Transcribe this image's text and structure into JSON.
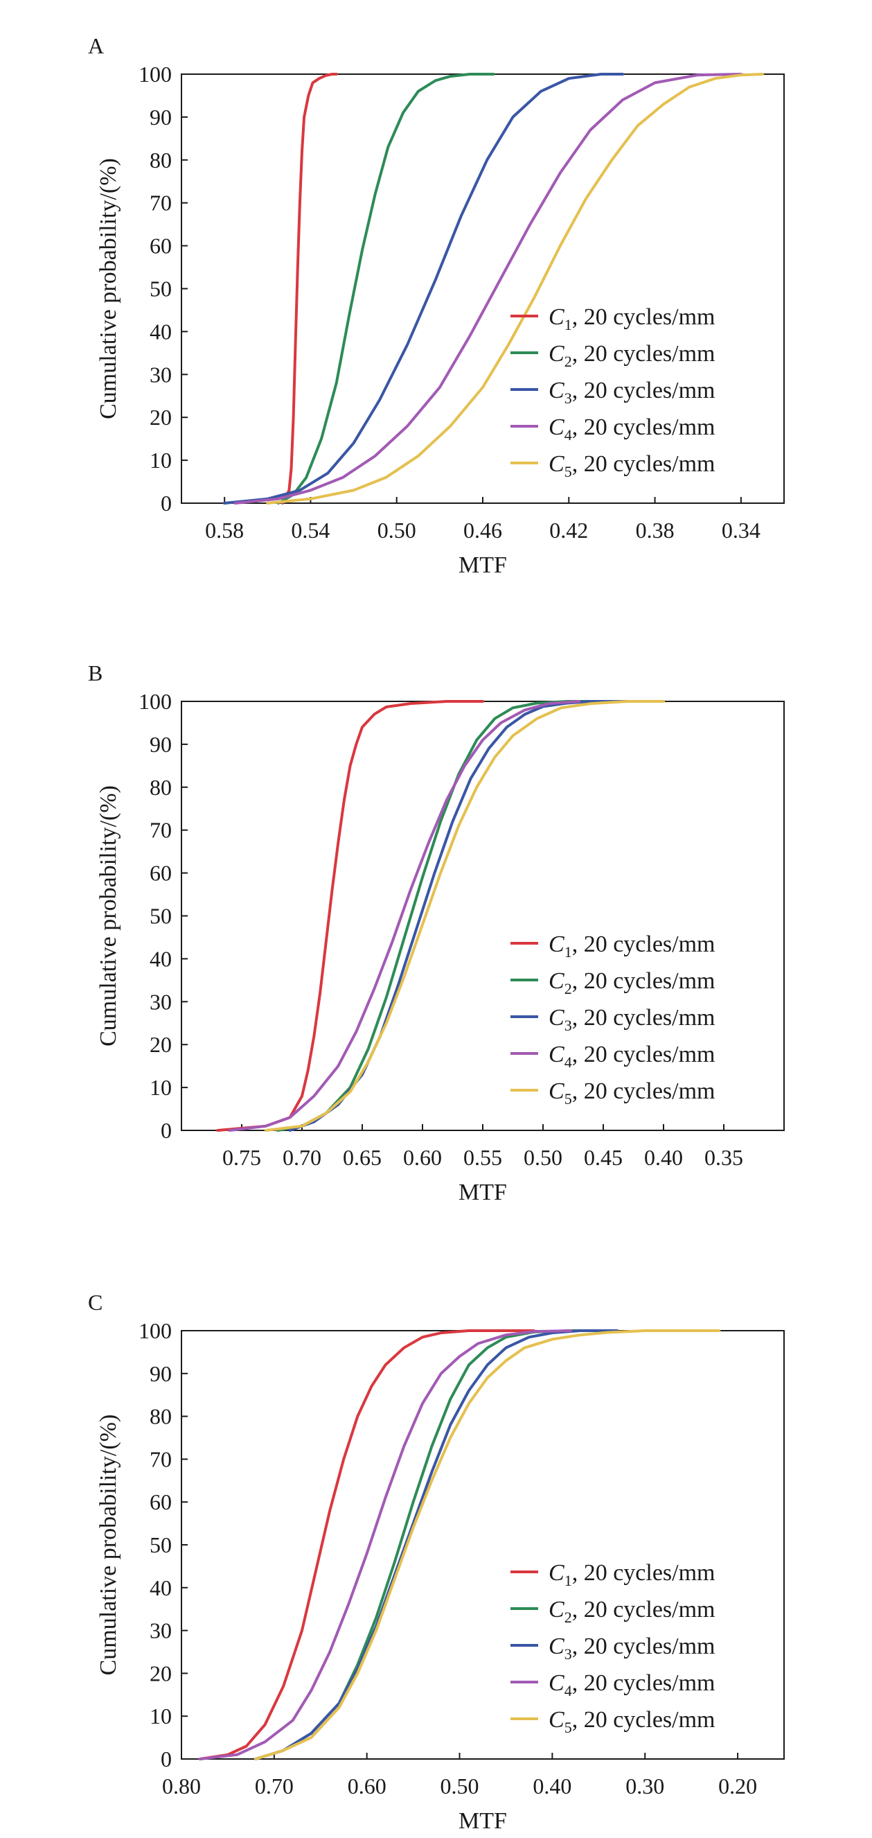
{
  "chart_data": [
    {
      "panel_label": "A",
      "type": "line",
      "xlabel": "MTF",
      "ylabel": "Cumulative probability/(%)",
      "x_reversed": true,
      "xlim": [
        0.6,
        0.32
      ],
      "ylim": [
        0,
        100
      ],
      "xticks": [
        "0.58",
        "0.54",
        "0.50",
        "0.46",
        "0.42",
        "0.38",
        "0.34"
      ],
      "yticks": [
        "0",
        "10",
        "20",
        "30",
        "40",
        "50",
        "60",
        "70",
        "80",
        "90",
        "100"
      ],
      "legend_position": "lower-right",
      "series": [
        {
          "legend_label": {
            "sym": "C",
            "sub": "1",
            "rest": ", 20 cycles/mm"
          },
          "color": "#d9383f",
          "x": [
            0.553,
            0.55,
            0.549,
            0.548,
            0.547,
            0.546,
            0.545,
            0.544,
            0.543,
            0.541,
            0.539,
            0.536,
            0.533,
            0.53,
            0.528
          ],
          "y": [
            0,
            3,
            8,
            20,
            38,
            55,
            70,
            82,
            90,
            95,
            98,
            99,
            99.7,
            100,
            100
          ]
        },
        {
          "legend_label": {
            "sym": "C",
            "sub": "2",
            "rest": ", 20 cycles/mm"
          },
          "color": "#2e8b57",
          "x": [
            0.555,
            0.548,
            0.542,
            0.535,
            0.528,
            0.522,
            0.516,
            0.51,
            0.504,
            0.497,
            0.49,
            0.482,
            0.475,
            0.466,
            0.455
          ],
          "y": [
            0,
            2,
            6,
            15,
            28,
            44,
            59,
            72,
            83,
            91,
            96,
            98.5,
            99.5,
            100,
            100
          ]
        },
        {
          "legend_label": {
            "sym": "C",
            "sub": "3",
            "rest": ", 20 cycles/mm"
          },
          "color": "#3a56a5",
          "x": [
            0.58,
            0.56,
            0.545,
            0.532,
            0.52,
            0.508,
            0.495,
            0.482,
            0.47,
            0.458,
            0.446,
            0.433,
            0.42,
            0.405,
            0.395
          ],
          "y": [
            0,
            1,
            3,
            7,
            14,
            24,
            37,
            52,
            67,
            80,
            90,
            96,
            99,
            100,
            100
          ]
        },
        {
          "legend_label": {
            "sym": "C",
            "sub": "4",
            "rest": ", 20 cycles/mm"
          },
          "color": "#a25ab4",
          "x": [
            0.575,
            0.555,
            0.54,
            0.525,
            0.51,
            0.495,
            0.48,
            0.466,
            0.452,
            0.438,
            0.424,
            0.41,
            0.395,
            0.38,
            0.36,
            0.34
          ],
          "y": [
            0,
            1,
            3,
            6,
            11,
            18,
            27,
            39,
            52,
            65,
            77,
            87,
            94,
            98,
            99.8,
            100
          ]
        },
        {
          "legend_label": {
            "sym": "C",
            "sub": "5",
            "rest": ", 20 cycles/mm"
          },
          "color": "#e5c04f",
          "x": [
            0.56,
            0.54,
            0.52,
            0.505,
            0.49,
            0.475,
            0.46,
            0.448,
            0.436,
            0.424,
            0.412,
            0.4,
            0.388,
            0.376,
            0.364,
            0.352,
            0.34,
            0.33
          ],
          "y": [
            0,
            1,
            3,
            6,
            11,
            18,
            27,
            37,
            48,
            60,
            71,
            80,
            88,
            93,
            97,
            99,
            99.8,
            100
          ]
        }
      ]
    },
    {
      "panel_label": "B",
      "type": "line",
      "xlabel": "MTF",
      "ylabel": "Cumulative probability/(%)",
      "x_reversed": true,
      "xlim": [
        0.8,
        0.3
      ],
      "ylim": [
        0,
        100
      ],
      "xticks": [
        "0.75",
        "0.70",
        "0.65",
        "0.60",
        "0.55",
        "0.50",
        "0.45",
        "0.40",
        "0.35"
      ],
      "yticks": [
        "0",
        "10",
        "20",
        "30",
        "40",
        "50",
        "60",
        "70",
        "80",
        "90",
        "100"
      ],
      "legend_position": "lower-right",
      "series": [
        {
          "legend_label": {
            "sym": "C",
            "sub": "1",
            "rest": ", 20 cycles/mm"
          },
          "color": "#d9383f",
          "x": [
            0.77,
            0.73,
            0.71,
            0.7,
            0.695,
            0.69,
            0.685,
            0.68,
            0.675,
            0.67,
            0.665,
            0.66,
            0.655,
            0.65,
            0.64,
            0.63,
            0.61,
            0.58,
            0.55
          ],
          "y": [
            0,
            1,
            3,
            8,
            14,
            22,
            32,
            44,
            56,
            67,
            77,
            85,
            90,
            94,
            97,
            98.7,
            99.5,
            100,
            100
          ]
        },
        {
          "legend_label": {
            "sym": "C",
            "sub": "2",
            "rest": ", 20 cycles/mm"
          },
          "color": "#2e8b57",
          "x": [
            0.72,
            0.7,
            0.68,
            0.66,
            0.645,
            0.63,
            0.615,
            0.6,
            0.585,
            0.57,
            0.555,
            0.54,
            0.525,
            0.505,
            0.48,
            0.45
          ],
          "y": [
            0,
            1,
            4,
            10,
            19,
            31,
            45,
            59,
            72,
            83,
            91,
            96,
            98.5,
            99.6,
            100,
            100
          ]
        },
        {
          "legend_label": {
            "sym": "C",
            "sub": "3",
            "rest": ", 20 cycles/mm"
          },
          "color": "#3a56a5",
          "x": [
            0.71,
            0.69,
            0.67,
            0.65,
            0.635,
            0.62,
            0.605,
            0.59,
            0.575,
            0.56,
            0.545,
            0.53,
            0.515,
            0.5,
            0.48,
            0.46,
            0.43
          ],
          "y": [
            0,
            2,
            6,
            13,
            22,
            34,
            47,
            60,
            72,
            82,
            89,
            94,
            97,
            98.8,
            99.6,
            100,
            100
          ]
        },
        {
          "legend_label": {
            "sym": "C",
            "sub": "4",
            "rest": ", 20 cycles/mm"
          },
          "color": "#a25ab4",
          "x": [
            0.76,
            0.73,
            0.71,
            0.69,
            0.67,
            0.655,
            0.64,
            0.625,
            0.61,
            0.595,
            0.58,
            0.565,
            0.55,
            0.535,
            0.515,
            0.495,
            0.47
          ],
          "y": [
            0,
            1,
            3,
            8,
            15,
            23,
            33,
            44,
            56,
            67,
            77,
            85,
            91,
            95,
            98,
            99.5,
            100
          ]
        },
        {
          "legend_label": {
            "sym": "C",
            "sub": "5",
            "rest": ", 20 cycles/mm"
          },
          "color": "#e5c04f",
          "x": [
            0.73,
            0.7,
            0.68,
            0.66,
            0.645,
            0.63,
            0.615,
            0.6,
            0.585,
            0.57,
            0.555,
            0.54,
            0.525,
            0.505,
            0.485,
            0.46,
            0.43,
            0.4
          ],
          "y": [
            0,
            1,
            4,
            9,
            16,
            25,
            36,
            48,
            60,
            71,
            80,
            87,
            92,
            96,
            98.5,
            99.5,
            100,
            100
          ]
        }
      ]
    },
    {
      "panel_label": "C",
      "type": "line",
      "xlabel": "MTF",
      "ylabel": "Cumulative probability/(%)",
      "x_reversed": true,
      "xlim": [
        0.8,
        0.15
      ],
      "ylim": [
        0,
        100
      ],
      "xticks": [
        "0.80",
        "0.70",
        "0.60",
        "0.50",
        "0.40",
        "0.30",
        "0.20"
      ],
      "yticks": [
        "0",
        "10",
        "20",
        "30",
        "40",
        "50",
        "60",
        "70",
        "80",
        "90",
        "100"
      ],
      "legend_position": "lower-right",
      "series": [
        {
          "legend_label": {
            "sym": "C",
            "sub": "1",
            "rest": ", 20 cycles/mm"
          },
          "color": "#d9383f",
          "x": [
            0.78,
            0.75,
            0.73,
            0.71,
            0.69,
            0.67,
            0.655,
            0.64,
            0.625,
            0.61,
            0.595,
            0.58,
            0.56,
            0.54,
            0.52,
            0.49,
            0.45,
            0.42
          ],
          "y": [
            0,
            1,
            3,
            8,
            17,
            30,
            44,
            58,
            70,
            80,
            87,
            92,
            96,
            98.5,
            99.5,
            100,
            100,
            100
          ]
        },
        {
          "legend_label": {
            "sym": "C",
            "sub": "2",
            "rest": ", 20 cycles/mm"
          },
          "color": "#2e8b57",
          "x": [
            0.72,
            0.69,
            0.66,
            0.63,
            0.61,
            0.59,
            0.57,
            0.55,
            0.53,
            0.51,
            0.49,
            0.47,
            0.45,
            0.42,
            0.38,
            0.35
          ],
          "y": [
            0,
            2,
            6,
            13,
            22,
            33,
            46,
            60,
            73,
            84,
            92,
            96,
            98.5,
            99.7,
            100,
            100
          ]
        },
        {
          "legend_label": {
            "sym": "C",
            "sub": "3",
            "rest": ", 20 cycles/mm"
          },
          "color": "#3a56a5",
          "x": [
            0.72,
            0.69,
            0.66,
            0.63,
            0.61,
            0.59,
            0.57,
            0.55,
            0.53,
            0.51,
            0.49,
            0.47,
            0.45,
            0.425,
            0.4,
            0.37,
            0.33
          ],
          "y": [
            0,
            2,
            6,
            13,
            21,
            31,
            43,
            55,
            67,
            78,
            86,
            92,
            96,
            98.5,
            99.5,
            100,
            100
          ]
        },
        {
          "legend_label": {
            "sym": "C",
            "sub": "4",
            "rest": ", 20 cycles/mm"
          },
          "color": "#a25ab4",
          "x": [
            0.78,
            0.74,
            0.71,
            0.68,
            0.66,
            0.64,
            0.62,
            0.6,
            0.58,
            0.56,
            0.54,
            0.52,
            0.5,
            0.48,
            0.45,
            0.42,
            0.38
          ],
          "y": [
            0,
            1,
            4,
            9,
            16,
            25,
            36,
            48,
            61,
            73,
            83,
            90,
            94,
            97,
            99,
            99.8,
            100
          ]
        },
        {
          "legend_label": {
            "sym": "C",
            "sub": "5",
            "rest": ", 20 cycles/mm"
          },
          "color": "#e5c04f",
          "x": [
            0.72,
            0.69,
            0.66,
            0.63,
            0.61,
            0.59,
            0.57,
            0.55,
            0.53,
            0.51,
            0.49,
            0.47,
            0.45,
            0.43,
            0.4,
            0.37,
            0.34,
            0.3,
            0.26,
            0.22
          ],
          "y": [
            0,
            2,
            5,
            12,
            20,
            30,
            42,
            54,
            65,
            75,
            83,
            89,
            93,
            96,
            98,
            99,
            99.6,
            100,
            100,
            100
          ]
        }
      ]
    }
  ]
}
